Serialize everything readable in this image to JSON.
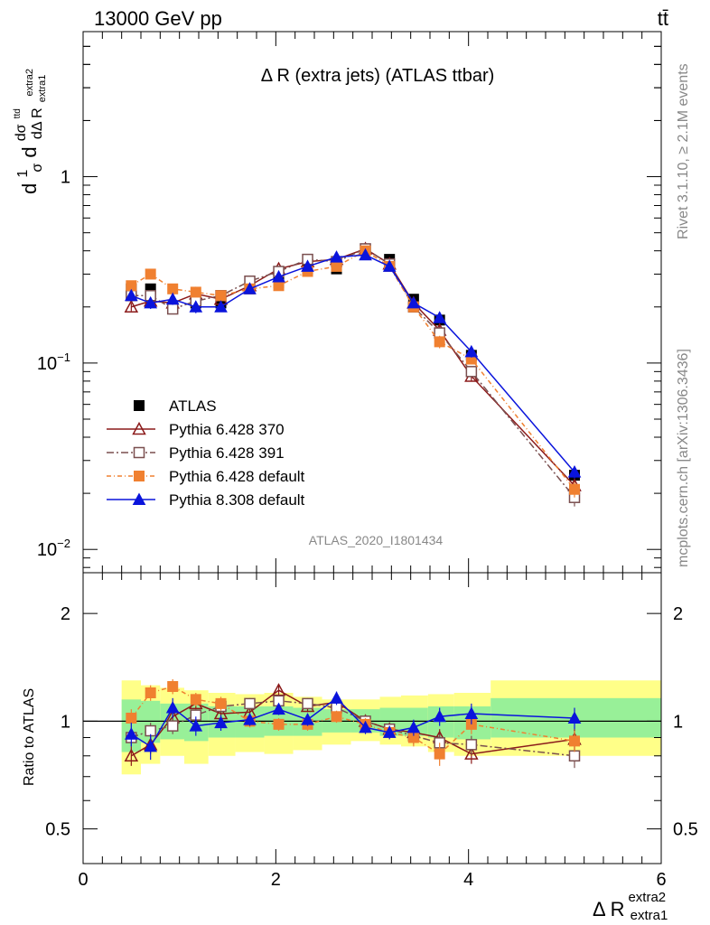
{
  "header": {
    "left": "13000 GeV pp",
    "right": "tt̄"
  },
  "side_labels": {
    "rivet": "Rivet 3.1.10, ≥ 2.1M events",
    "mcplots": "mcplots.cern.ch [arXiv:1306.3436]"
  },
  "chart_data": [
    {
      "type": "scatter",
      "panel": "main",
      "title": "Δ R (extra jets) (ATLAS ttbar)",
      "analysis_label": "ATLAS_2020_I1801434",
      "ylabel_parts": {
        "a": "d",
        "frac_num": "1",
        "frac_den": "σ",
        "b": "d",
        "c": "dσ",
        "c_sup": "ttd",
        "d": "dΔ R",
        "d_sub": "extra1",
        "d_sup": "extra2"
      },
      "yscale": "log",
      "xlim": [
        0,
        6
      ],
      "ylim": [
        0.0075,
        6.0
      ],
      "y_ticks": [
        {
          "v": 1,
          "label": "1"
        },
        {
          "v": 0.1,
          "label": "10",
          "exp": "−1"
        },
        {
          "v": 0.01,
          "label": "10",
          "exp": "−2"
        }
      ],
      "legend_position": "lower-left",
      "x": [
        0.5,
        0.7,
        0.93,
        1.17,
        1.43,
        1.73,
        2.03,
        2.33,
        2.63,
        2.93,
        3.18,
        3.43,
        3.7,
        4.03,
        5.1
      ],
      "series": [
        {
          "name": "ATLAS",
          "color": "#000000",
          "marker": "square-filled",
          "dash": "",
          "values": [
            0.25,
            0.25,
            0.2,
            0.21,
            0.21,
            0.25,
            0.27,
            0.32,
            0.32,
            0.41,
            0.36,
            0.22,
            0.17,
            0.11,
            0.025
          ],
          "errors": [
            0.01,
            0.01,
            0.01,
            0.01,
            0.01,
            0.01,
            0.01,
            0.01,
            0.01,
            0.01,
            0.01,
            0.01,
            0.01,
            0.005,
            0.002
          ]
        },
        {
          "name": "Pythia 6.428 370",
          "color": "#8b1a1a",
          "marker": "triangle-open",
          "dash": "",
          "values": [
            0.2,
            0.215,
            0.21,
            0.235,
            0.22,
            0.26,
            0.32,
            0.35,
            0.36,
            0.41,
            0.34,
            0.21,
            0.15,
            0.085,
            0.022
          ],
          "errors": [
            0.01,
            0.01,
            0.01,
            0.01,
            0.01,
            0.01,
            0.01,
            0.01,
            0.01,
            0.01,
            0.01,
            0.01,
            0.01,
            0.005,
            0.002
          ]
        },
        {
          "name": "Pythia 6.428 391",
          "color": "#7a4f4f",
          "marker": "square-open",
          "dash": "8,3,2,3",
          "values": [
            0.23,
            0.23,
            0.195,
            0.215,
            0.23,
            0.275,
            0.31,
            0.36,
            0.35,
            0.41,
            0.34,
            0.2,
            0.145,
            0.09,
            0.019
          ],
          "errors": [
            0.01,
            0.01,
            0.01,
            0.01,
            0.01,
            0.01,
            0.01,
            0.01,
            0.01,
            0.01,
            0.01,
            0.01,
            0.01,
            0.005,
            0.002
          ]
        },
        {
          "name": "Pythia 6.428 default",
          "color": "#f08030",
          "marker": "square-filled",
          "dash": "5,3,1,3",
          "values": [
            0.26,
            0.3,
            0.25,
            0.24,
            0.23,
            0.25,
            0.26,
            0.31,
            0.33,
            0.4,
            0.33,
            0.2,
            0.13,
            0.105,
            0.021
          ],
          "errors": [
            0.015,
            0.015,
            0.012,
            0.012,
            0.01,
            0.01,
            0.01,
            0.01,
            0.01,
            0.01,
            0.01,
            0.01,
            0.01,
            0.006,
            0.002
          ]
        },
        {
          "name": "Pythia 8.308 default",
          "color": "#0a14dc",
          "marker": "triangle-filled",
          "dash": "",
          "values": [
            0.23,
            0.21,
            0.22,
            0.2,
            0.2,
            0.25,
            0.29,
            0.33,
            0.37,
            0.38,
            0.33,
            0.21,
            0.175,
            0.115,
            0.026
          ],
          "errors": [
            0.015,
            0.015,
            0.015,
            0.015,
            0.01,
            0.01,
            0.01,
            0.01,
            0.01,
            0.01,
            0.01,
            0.01,
            0.01,
            0.008,
            0.002
          ]
        }
      ]
    },
    {
      "type": "scatter",
      "panel": "ratio",
      "ylabel": "Ratio to ATLAS",
      "xlabel_main": "Δ R",
      "xlabel_sub": "extra1",
      "xlabel_sup": "extra2",
      "yscale": "log",
      "xlim": [
        0,
        6
      ],
      "ylim": [
        0.4,
        2.6
      ],
      "x_ticks": [
        0,
        2,
        4,
        6
      ],
      "y_ticks": [
        0.5,
        1,
        2
      ],
      "reference_line": 1,
      "bands": {
        "edges": [
          0.4,
          0.6,
          0.8,
          1.05,
          1.3,
          1.58,
          1.88,
          2.18,
          2.48,
          2.78,
          3.08,
          3.3,
          3.58,
          3.85,
          4.23,
          6.0
        ],
        "inner_color": "#98f098",
        "outer_color": "#ffff88",
        "inner_low": [
          0.82,
          0.87,
          0.89,
          0.88,
          0.9,
          0.9,
          0.91,
          0.91,
          0.93,
          0.93,
          0.91,
          0.91,
          0.9,
          0.89,
          0.9
        ],
        "inner_high": [
          1.15,
          1.14,
          1.12,
          1.12,
          1.1,
          1.1,
          1.1,
          1.09,
          1.08,
          1.08,
          1.09,
          1.09,
          1.1,
          1.1,
          1.16
        ],
        "outer_low": [
          0.71,
          0.76,
          0.8,
          0.76,
          0.8,
          0.82,
          0.81,
          0.83,
          0.86,
          0.88,
          0.86,
          0.85,
          0.82,
          0.8,
          0.8
        ],
        "outer_high": [
          1.3,
          1.26,
          1.24,
          1.22,
          1.2,
          1.19,
          1.2,
          1.17,
          1.15,
          1.15,
          1.17,
          1.18,
          1.19,
          1.2,
          1.3
        ]
      },
      "series": [
        {
          "name": "Pythia 6.428 370",
          "values": [
            0.8,
            0.86,
            1.03,
            1.12,
            1.05,
            1.06,
            1.22,
            1.1,
            1.13,
            1.0,
            0.95,
            0.93,
            0.9,
            0.81,
            0.89
          ],
          "errors": [
            0.05,
            0.05,
            0.05,
            0.04,
            0.04,
            0.04,
            0.04,
            0.04,
            0.04,
            0.04,
            0.04,
            0.05,
            0.05,
            0.05,
            0.06
          ]
        },
        {
          "name": "Pythia 6.428 391",
          "values": [
            0.9,
            0.94,
            0.97,
            1.04,
            1.1,
            1.12,
            1.14,
            1.12,
            1.09,
            1.0,
            0.95,
            0.91,
            0.87,
            0.86,
            0.8
          ],
          "errors": [
            0.05,
            0.05,
            0.05,
            0.04,
            0.04,
            0.04,
            0.04,
            0.04,
            0.04,
            0.04,
            0.04,
            0.05,
            0.05,
            0.05,
            0.06
          ]
        },
        {
          "name": "Pythia 6.428 default",
          "values": [
            1.02,
            1.2,
            1.25,
            1.15,
            1.12,
            1.0,
            0.98,
            0.98,
            1.03,
            0.98,
            0.93,
            0.9,
            0.81,
            0.98,
            0.88
          ],
          "errors": [
            0.06,
            0.06,
            0.06,
            0.05,
            0.05,
            0.04,
            0.04,
            0.04,
            0.04,
            0.04,
            0.04,
            0.05,
            0.06,
            0.06,
            0.06
          ]
        },
        {
          "name": "Pythia 8.308 default",
          "values": [
            0.92,
            0.85,
            1.09,
            0.97,
            0.99,
            1.01,
            1.08,
            1.01,
            1.16,
            0.96,
            0.93,
            0.96,
            1.03,
            1.05,
            1.02
          ],
          "errors": [
            0.07,
            0.07,
            0.07,
            0.06,
            0.05,
            0.04,
            0.04,
            0.04,
            0.05,
            0.04,
            0.04,
            0.05,
            0.06,
            0.07,
            0.07
          ]
        }
      ]
    }
  ]
}
